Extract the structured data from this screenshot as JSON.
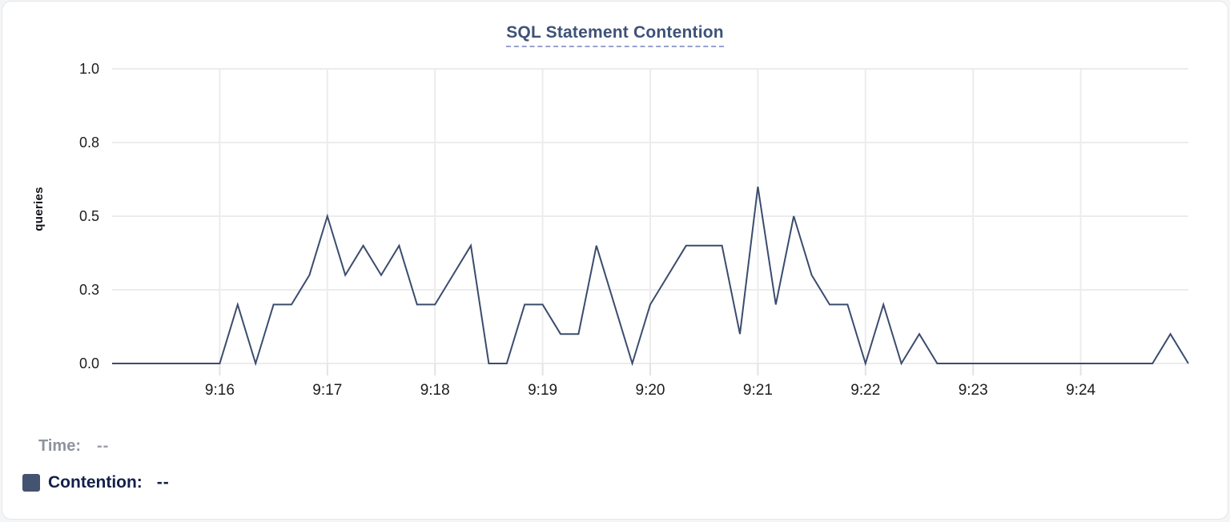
{
  "chart_data": {
    "type": "line",
    "title": "SQL Statement Contention",
    "xlabel": "",
    "ylabel": "queries",
    "ylim": [
      0,
      1.0
    ],
    "grid": true,
    "legend_position": "bottom-left",
    "y_ticks": [
      {
        "value": 0,
        "label": "0.0"
      },
      {
        "value": 0.25,
        "label": "0.3"
      },
      {
        "value": 0.5,
        "label": "0.5"
      },
      {
        "value": 0.75,
        "label": "0.8"
      },
      {
        "value": 1.0,
        "label": "1.0"
      }
    ],
    "x_start_time": "9:15:00",
    "x_end_time": "9:25:00",
    "x_range_seconds": [
      0,
      600
    ],
    "x_ticks": [
      {
        "seconds": 60,
        "label": "9:16"
      },
      {
        "seconds": 120,
        "label": "9:17"
      },
      {
        "seconds": 180,
        "label": "9:18"
      },
      {
        "seconds": 240,
        "label": "9:19"
      },
      {
        "seconds": 300,
        "label": "9:20"
      },
      {
        "seconds": 360,
        "label": "9:21"
      },
      {
        "seconds": 420,
        "label": "9:22"
      },
      {
        "seconds": 480,
        "label": "9:23"
      },
      {
        "seconds": 540,
        "label": "9:24"
      }
    ],
    "series": [
      {
        "name": "Contention",
        "color": "#3b4c6e",
        "start_time": "9:15:00",
        "interval_seconds": 10,
        "values": [
          0,
          0,
          0,
          0,
          0,
          0,
          0,
          0.2,
          0,
          0.2,
          0.2,
          0.3,
          0.5,
          0.3,
          0.4,
          0.3,
          0.4,
          0.2,
          0.2,
          0.3,
          0.4,
          0,
          0,
          0.2,
          0.2,
          0.1,
          0.1,
          0.4,
          0.2,
          0,
          0.2,
          0.3,
          0.4,
          0.4,
          0.4,
          0.1,
          0.6,
          0.2,
          0.5,
          0.3,
          0.2,
          0.2,
          0,
          0.2,
          0,
          0.1,
          0,
          0,
          0,
          0,
          0,
          0,
          0,
          0,
          0,
          0,
          0,
          0,
          0,
          0.1,
          0
        ]
      }
    ]
  },
  "legend": {
    "time_label": "Time:",
    "time_value": "--",
    "contention_label": "Contention:",
    "contention_value": "--",
    "swatch_color": "#44536f"
  },
  "colors": {
    "title": "#3e5277",
    "title_underline": "#99a1cd",
    "axis_text": "#1d1d1f",
    "gridline": "#ececec",
    "tick_mark": "#e3e3e3",
    "line": "#3b4c6e",
    "card_background": "#ffffff",
    "page_background": "#f4f5f6"
  }
}
